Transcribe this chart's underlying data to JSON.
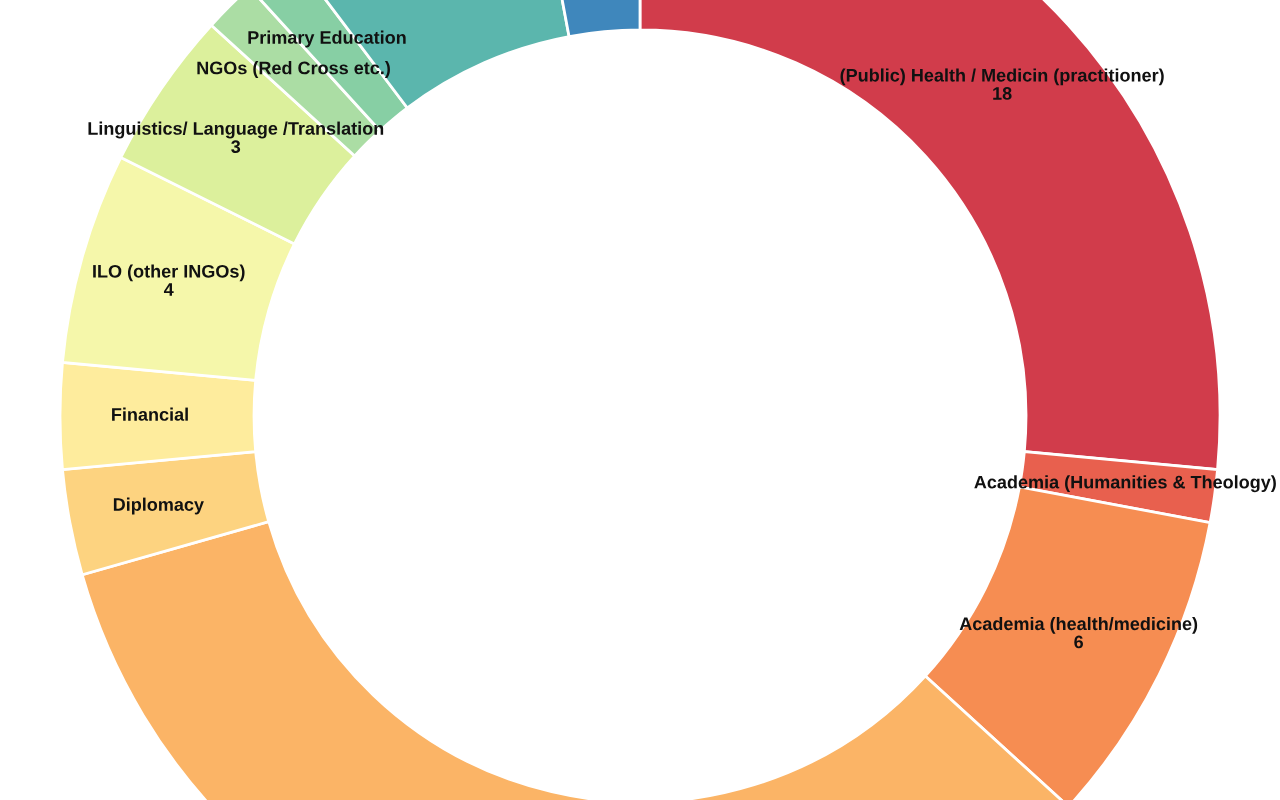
{
  "chart_data": {
    "type": "donut",
    "categories": [
      "(Public) Health / Medicin (practitioner)",
      "Academia (Humanities & Theology)",
      "Academia (health/medicine)",
      null,
      "Diplomacy",
      "Financial",
      "ILO (other INGOs)",
      "Linguistics/ Language /Translation",
      "NGOs (Red Cross etc.)",
      "Primary Education",
      null,
      null
    ],
    "values": [
      18,
      1,
      6,
      23,
      2,
      2,
      4,
      3,
      1,
      1,
      5,
      2
    ],
    "value_labels": [
      "18",
      null,
      "6",
      null,
      null,
      null,
      "4",
      "3",
      null,
      null,
      null,
      null
    ],
    "colors": [
      "#d13c4b",
      "#e8604e",
      "#f68d52",
      "#fbb466",
      "#fdd380",
      "#feec9d",
      "#f5f7aa",
      "#dcf09c",
      "#abdda4",
      "#87cfa4",
      "#5bb6ad",
      "#3f87bc"
    ]
  }
}
